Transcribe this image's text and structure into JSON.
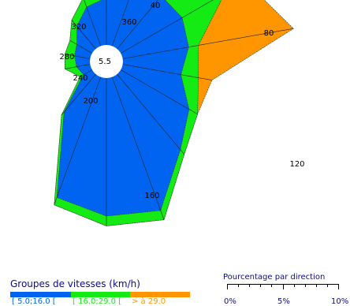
{
  "chart_data": {
    "type": "polar-area-rose",
    "title": "",
    "calm_value": "5.5",
    "directions_deg": [
      0,
      20,
      40,
      60,
      80,
      100,
      120,
      140,
      160,
      180,
      200,
      220,
      240,
      260,
      280,
      300,
      320,
      340
    ],
    "direction_labels": [
      "360",
      "40",
      "80",
      "120",
      "160",
      "200",
      "240",
      "280",
      "320"
    ],
    "series": [
      {
        "name": "[ 5.0;16.0 [",
        "color": "#0064f0",
        "values": [
          2.4,
          3.2,
          3.5,
          3.6,
          3.4,
          3.0,
          4.0,
          5.0,
          7.2,
          7.0,
          6.5,
          2.5,
          0.5,
          0.7,
          0.8,
          0.9,
          1.5,
          2.1
        ]
      },
      {
        "name": "[ 16.0;29.0 [",
        "color": "#14eb14",
        "values": [
          3.1,
          5.3,
          6.4,
          6.1,
          3.9,
          3.9,
          4.5,
          5.3,
          7.7,
          7.5,
          6.9,
          2.7,
          0.7,
          1.3,
          1.3,
          1.3,
          1.9,
          2.6
        ]
      },
      {
        "name": "> à 29.0",
        "color": "#ff9600",
        "values": [
          3.1,
          6.8,
          8.1,
          7.3,
          8.8,
          4.6,
          4.5,
          5.3,
          7.7,
          7.5,
          6.9,
          2.7,
          0.7,
          1.3,
          1.3,
          1.3,
          1.9,
          2.6
        ]
      }
    ],
    "legend_title": "Groupes de vitesses (km/h)",
    "scale": {
      "title": "Pourcentage par direction",
      "tick_labels": [
        "0%",
        "5%",
        "10%"
      ],
      "max_percent": 10
    }
  }
}
